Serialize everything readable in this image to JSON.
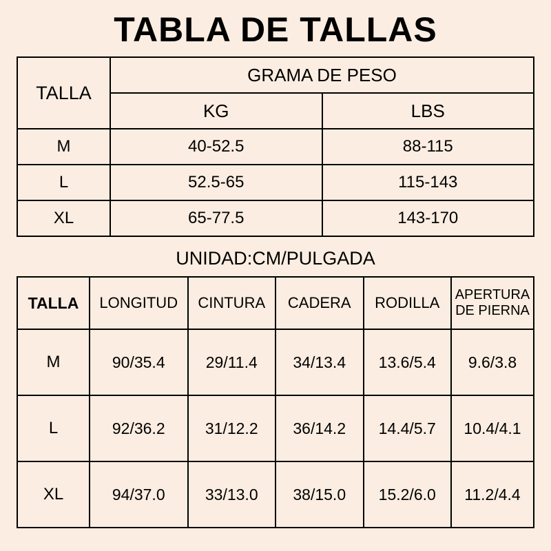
{
  "colors": {
    "background": "#fbede1",
    "border": "#000000",
    "text": "#000000"
  },
  "title": "TABLA DE TALLAS",
  "weight_table": {
    "headers": {
      "talla": "TALLA",
      "grama": "GRAMA DE PESO",
      "kg": "KG",
      "lbs": "LBS"
    },
    "col_widths_pct": [
      18,
      41,
      41
    ],
    "rows": [
      {
        "talla": "M",
        "kg": "40-52.5",
        "lbs": "88-115"
      },
      {
        "talla": "L",
        "kg": "52.5-65",
        "lbs": "115-143"
      },
      {
        "talla": "XL",
        "kg": "65-77.5",
        "lbs": "143-170"
      }
    ]
  },
  "subtitle": "UNIDAD:CM/PULGADA",
  "meas_table": {
    "headers": [
      "TALLA",
      "LONGITUD",
      "CINTURA",
      "CADERA",
      "RODILLA",
      "APERTURA DE PIERNA"
    ],
    "col_widths_pct": [
      14,
      19,
      17,
      17,
      17,
      16
    ],
    "rows": [
      [
        "M",
        "90/35.4",
        "29/11.4",
        "34/13.4",
        "13.6/5.4",
        "9.6/3.8"
      ],
      [
        "L",
        "92/36.2",
        "31/12.2",
        "36/14.2",
        "14.4/5.7",
        "10.4/4.1"
      ],
      [
        "XL",
        "94/37.0",
        "33/13.0",
        "38/15.0",
        "15.2/6.0",
        "11.2/4.4"
      ]
    ]
  }
}
